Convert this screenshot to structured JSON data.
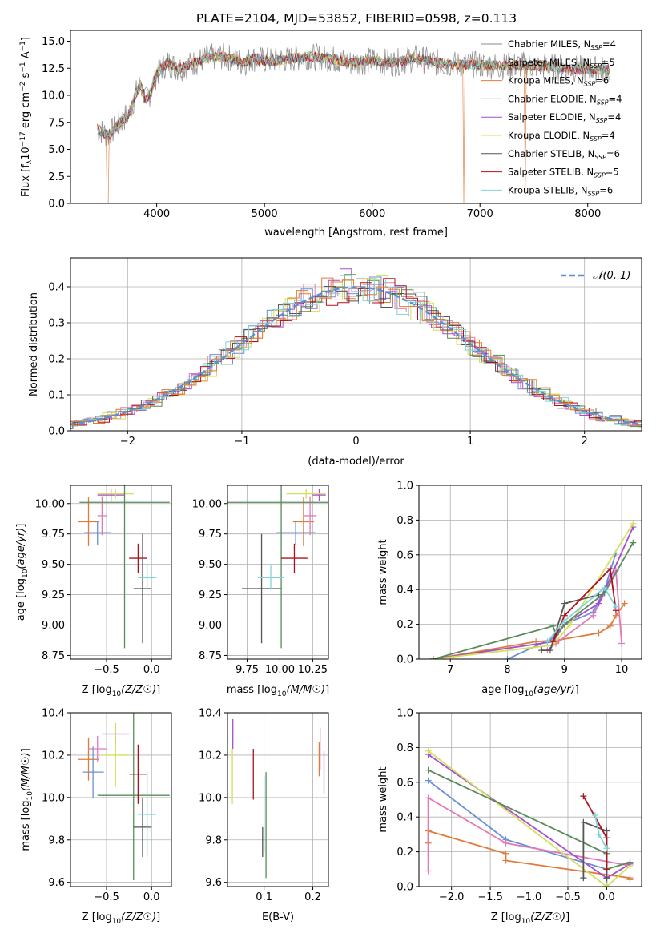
{
  "figure_title": "PLATE=2104, MJD=53852, FIBERID=0598, z=0.113",
  "colors": {
    "Chabrier MILES": "#6a8fd8",
    "Salpeter MILES": "#e07b39",
    "Kroupa MILES": "#e07b39",
    "Chabrier ELODIE": "#5a8a5a",
    "Salpeter ELODIE": "#a64dcc",
    "Kroupa ELODIE": "#d4e05a",
    "Chabrier STELIB": "#555555",
    "Salpeter STELIB": "#b0101a",
    "Kroupa STELIB": "#7fd4d8",
    "pink": "#e37ab8",
    "normal": "#5a8fd8"
  },
  "chart_data": [
    {
      "id": "spectrum",
      "type": "line",
      "xlabel": "wavelength [Angstrom, rest frame]",
      "ylabel": "Flux [f_λ 10^-17 erg cm^-2 s^-1 A^-1]",
      "ylabel_parts": {
        "main": "Flux [f",
        "sub": "λ",
        "mid": "10",
        "sup1": "−17",
        "rest": " erg cm",
        "sup2": "−2",
        "s": " s",
        "sup3": "−1",
        "a": " A",
        "sup4": "−1",
        "end": "]"
      },
      "xlim": [
        3200,
        8500
      ],
      "ylim": [
        0,
        16
      ],
      "xticks": [
        "4000",
        "5000",
        "6000",
        "7000",
        "8000"
      ],
      "yticks": [
        "0.0",
        "2.5",
        "5.0",
        "7.5",
        "10.0",
        "12.5",
        "15.0"
      ],
      "legend": [
        {
          "model": "Chabrier MILES",
          "n": "4",
          "color": "#888888"
        },
        {
          "model": "Salpeter MILES",
          "n": "5",
          "color": "#e07b39"
        },
        {
          "model": "Kroupa MILES",
          "n": "6",
          "color": "#e07b39"
        },
        {
          "model": "Chabrier ELODIE",
          "n": "4",
          "color": "#5a8a5a"
        },
        {
          "model": "Salpeter ELODIE",
          "n": "4",
          "color": "#a64dcc"
        },
        {
          "model": "Kroupa ELODIE",
          "n": "4",
          "color": "#d4e05a"
        },
        {
          "model": "Chabrier STELIB",
          "n": "6",
          "color": "#555555"
        },
        {
          "model": "Salpeter STELIB",
          "n": "5",
          "color": "#b0101a"
        },
        {
          "model": "Kroupa STELIB",
          "n": "6",
          "color": "#7fd4d8"
        }
      ],
      "nssp_label": "N",
      "nssp_sub": "SSP",
      "series_x": [
        3450,
        3500,
        3550,
        3600,
        3650,
        3700,
        3750,
        3800,
        3850,
        3900,
        3950,
        4000,
        4100,
        4200,
        4300,
        4400,
        4500,
        4600,
        4700,
        4800,
        4900,
        5000,
        5200,
        5400,
        5600,
        5800,
        6000,
        6200,
        6400,
        6600,
        6800,
        7000,
        7200,
        7400,
        7600,
        7800,
        8000,
        8200
      ],
      "series_y": [
        6.9,
        6.6,
        6.3,
        6.8,
        7.4,
        7.9,
        8.4,
        10.0,
        11.0,
        9.5,
        10.5,
        12.0,
        13.0,
        12.5,
        12.8,
        13.2,
        13.5,
        13.6,
        13.4,
        13.0,
        13.4,
        13.2,
        13.3,
        13.6,
        13.4,
        13.0,
        13.2,
        13.0,
        13.4,
        13.0,
        12.8,
        12.8,
        12.7,
        12.8,
        12.7,
        12.5,
        12.4,
        12.4
      ]
    },
    {
      "id": "residual-hist",
      "type": "line",
      "xlabel": "(data-model)/error",
      "ylabel": "Normed distribution",
      "xlim": [
        -2.5,
        2.5
      ],
      "ylim": [
        0,
        0.48
      ],
      "xticks": [
        "−2",
        "−1",
        "0",
        "1",
        "2"
      ],
      "yticks": [
        "0.0",
        "0.1",
        "0.2",
        "0.3",
        "0.4"
      ],
      "legend": "𝒩(0, 1)",
      "normal_curve": {
        "mean": 0,
        "sigma": 1
      }
    },
    {
      "id": "age-vs-z",
      "type": "scatter",
      "xlabel": "Z [log10(Z/Z☉)]",
      "ylabel": "age [log10(age/yr)]",
      "xlim": [
        -0.9,
        0.22
      ],
      "ylim": [
        8.72,
        10.15
      ],
      "xticks": [
        "−0.5",
        "0.0"
      ],
      "yticks": [
        "8.75",
        "9.00",
        "9.25",
        "9.50",
        "9.75",
        "10.00"
      ],
      "points": [
        {
          "x": -0.7,
          "y": 9.85,
          "xe": 0.12,
          "ye": 0.2,
          "c": "#e07b39"
        },
        {
          "x": -0.6,
          "y": 9.76,
          "xe": 0.15,
          "ye": 0.1,
          "c": "#6a8fd8"
        },
        {
          "x": -0.55,
          "y": 9.9,
          "xe": 0.05,
          "ye": 0.16,
          "c": "#e37ab8"
        },
        {
          "x": -0.45,
          "y": 10.07,
          "xe": 0.15,
          "ye": 0.05,
          "c": "#a64dcc"
        },
        {
          "x": -0.4,
          "y": 10.08,
          "xe": 0.2,
          "ye": 0.04,
          "c": "#d4e05a"
        },
        {
          "x": -0.3,
          "y": 10.01,
          "xe": 0.5,
          "ye": 1.2,
          "c": "#5a8a5a"
        },
        {
          "x": -0.15,
          "y": 9.55,
          "xe": 0.1,
          "ye": 0.12,
          "c": "#b0101a"
        },
        {
          "x": -0.1,
          "y": 9.3,
          "xe": 0.1,
          "ye": 0.45,
          "c": "#555555"
        },
        {
          "x": -0.05,
          "y": 9.39,
          "xe": 0.1,
          "ye": 0.1,
          "c": "#7fd4d8"
        }
      ]
    },
    {
      "id": "age-vs-mass",
      "type": "scatter",
      "xlabel": "mass [log10(M/M☉)]",
      "ylabel": "",
      "xlim": [
        9.6,
        10.37
      ],
      "ylim": [
        8.72,
        10.15
      ],
      "xticks": [
        "9.75",
        "10.00",
        "10.25"
      ],
      "yticks": [
        "8.75",
        "9.00",
        "9.25",
        "9.50",
        "9.75",
        "10.00"
      ],
      "points": [
        {
          "x": 10.18,
          "y": 9.85,
          "xe": 0.08,
          "ye": 0.2,
          "c": "#e07b39"
        },
        {
          "x": 10.12,
          "y": 9.76,
          "xe": 0.15,
          "ye": 0.1,
          "c": "#6a8fd8"
        },
        {
          "x": 10.23,
          "y": 9.9,
          "xe": 0.05,
          "ye": 0.16,
          "c": "#e37ab8"
        },
        {
          "x": 10.3,
          "y": 10.07,
          "xe": 0.05,
          "ye": 0.05,
          "c": "#a64dcc"
        },
        {
          "x": 10.2,
          "y": 10.08,
          "xe": 0.15,
          "ye": 0.04,
          "c": "#d4e05a"
        },
        {
          "x": 10.01,
          "y": 10.01,
          "xe": 0.42,
          "ye": 1.2,
          "c": "#5a8a5a"
        },
        {
          "x": 10.11,
          "y": 9.55,
          "xe": 0.1,
          "ye": 0.12,
          "c": "#b0101a"
        },
        {
          "x": 9.86,
          "y": 9.3,
          "xe": 0.15,
          "ye": 0.45,
          "c": "#555555"
        },
        {
          "x": 9.93,
          "y": 9.39,
          "xe": 0.1,
          "ye": 0.1,
          "c": "#7fd4d8"
        }
      ]
    },
    {
      "id": "mass-weight-vs-age",
      "type": "line",
      "xlabel": "age [log10(age/yr)]",
      "ylabel": "mass weight",
      "xlim": [
        6.45,
        10.35
      ],
      "ylim": [
        0,
        1.0
      ],
      "xticks": [
        "7",
        "8",
        "9",
        "10"
      ],
      "yticks": [
        "0.0",
        "0.2",
        "0.4",
        "0.6",
        "0.8",
        "1.0"
      ],
      "series": [
        {
          "c": "#e07b39",
          "x": [
            6.7,
            8.5,
            8.9,
            9.6,
            9.8,
            9.9,
            10.05
          ],
          "y": [
            0.0,
            0.1,
            0.11,
            0.15,
            0.19,
            0.25,
            0.32
          ]
        },
        {
          "c": "#6a8fd8",
          "x": [
            8.0,
            8.8,
            9.0,
            9.5,
            9.7,
            9.9
          ],
          "y": [
            0.0,
            0.12,
            0.2,
            0.27,
            0.4,
            0.61
          ]
        },
        {
          "c": "#e37ab8",
          "x": [
            8.7,
            8.85,
            9.5,
            9.9,
            10.0
          ],
          "y": [
            0.05,
            0.09,
            0.25,
            0.51,
            0.09
          ]
        },
        {
          "c": "#a64dcc",
          "x": [
            6.7,
            8.8,
            9.0,
            9.6,
            10.2
          ],
          "y": [
            0.0,
            0.1,
            0.2,
            0.32,
            0.76
          ]
        },
        {
          "c": "#d4e05a",
          "x": [
            6.7,
            8.8,
            9.1,
            10.2
          ],
          "y": [
            0.0,
            0.08,
            0.2,
            0.78
          ]
        },
        {
          "c": "#5a8a5a",
          "x": [
            6.7,
            8.8,
            8.85,
            9.0,
            9.7,
            10.2
          ],
          "y": [
            0.0,
            0.19,
            0.14,
            0.2,
            0.38,
            0.67
          ]
        },
        {
          "c": "#555555",
          "x": [
            8.6,
            8.75,
            9.0,
            9.6
          ],
          "y": [
            0.05,
            0.05,
            0.32,
            0.37
          ]
        },
        {
          "c": "#b0101a",
          "x": [
            8.8,
            9.0,
            9.8,
            9.9
          ],
          "y": [
            0.1,
            0.25,
            0.52,
            0.28
          ]
        },
        {
          "c": "#7fd4d8",
          "x": [
            8.7,
            9.0,
            9.7,
            9.9
          ],
          "y": [
            0.1,
            0.22,
            0.41,
            0.3
          ]
        }
      ]
    },
    {
      "id": "mass-vs-z",
      "type": "scatter",
      "xlabel": "Z [log10(Z/Z☉)]",
      "ylabel": "mass [log10(M/M☉)]",
      "xlim": [
        -0.9,
        0.22
      ],
      "ylim": [
        9.58,
        10.4
      ],
      "xticks": [
        "−0.5",
        "0.0"
      ],
      "yticks": [
        "9.6",
        "9.8",
        "10.0",
        "10.2",
        "10.4"
      ],
      "points": [
        {
          "x": -0.7,
          "y": 10.18,
          "xe": 0.12,
          "ye": 0.1,
          "c": "#e07b39"
        },
        {
          "x": -0.65,
          "y": 10.12,
          "xe": 0.12,
          "ye": 0.12,
          "c": "#6a8fd8"
        },
        {
          "x": -0.6,
          "y": 10.23,
          "xe": 0.1,
          "ye": 0.06,
          "c": "#e37ab8"
        },
        {
          "x": -0.4,
          "y": 10.3,
          "xe": 0.15,
          "ye": 0.05,
          "c": "#a64dcc"
        },
        {
          "x": -0.4,
          "y": 10.2,
          "xe": 0.15,
          "ye": 0.15,
          "c": "#d4e05a"
        },
        {
          "x": -0.2,
          "y": 10.01,
          "xe": 0.4,
          "ye": 0.4,
          "c": "#5a8a5a"
        },
        {
          "x": -0.15,
          "y": 10.11,
          "xe": 0.1,
          "ye": 0.14,
          "c": "#b0101a"
        },
        {
          "x": -0.1,
          "y": 9.86,
          "xe": 0.1,
          "ye": 0.14,
          "c": "#555555"
        },
        {
          "x": -0.05,
          "y": 9.92,
          "xe": 0.1,
          "ye": 0.2,
          "c": "#7fd4d8"
        }
      ]
    },
    {
      "id": "mass-vs-ebv",
      "type": "scatter",
      "xlabel": "E(B-V)",
      "ylabel": "",
      "xlim": [
        0.025,
        0.232
      ],
      "ylim": [
        9.58,
        10.4
      ],
      "xticks": [
        "0.1",
        "0.2"
      ],
      "yticks": [
        "9.6",
        "9.8",
        "10.0",
        "10.2",
        "10.4"
      ],
      "points": [
        {
          "x": 0.213,
          "y": 10.18,
          "xe": 0,
          "ye": 0.08,
          "c": "#e07b39"
        },
        {
          "x": 0.223,
          "y": 10.12,
          "xe": 0,
          "ye": 0.1,
          "c": "#6a8fd8"
        },
        {
          "x": 0.215,
          "y": 10.23,
          "xe": 0,
          "ye": 0.1,
          "c": "#e37ab8"
        },
        {
          "x": 0.036,
          "y": 10.3,
          "xe": 0,
          "ye": 0.07,
          "c": "#a64dcc"
        },
        {
          "x": 0.035,
          "y": 10.1,
          "xe": 0,
          "ye": 0.13,
          "c": "#d4e05a"
        },
        {
          "x": 0.104,
          "y": 9.87,
          "xe": 0,
          "ye": 0.25,
          "c": "#5a8a5a"
        },
        {
          "x": 0.078,
          "y": 10.11,
          "xe": 0,
          "ye": 0.12,
          "c": "#b0101a"
        },
        {
          "x": 0.097,
          "y": 9.79,
          "xe": 0,
          "ye": 0.07,
          "c": "#555555"
        },
        {
          "x": 0.1,
          "y": 9.92,
          "xe": 0,
          "ye": 0.18,
          "c": "#7fd4d8"
        }
      ]
    },
    {
      "id": "mass-weight-vs-z",
      "type": "line",
      "xlabel": "Z [log10(Z/Z☉)]",
      "ylabel": "mass weight",
      "xlim": [
        -2.42,
        0.45
      ],
      "ylim": [
        0,
        1.0
      ],
      "xticks": [
        "−2.0",
        "−1.5",
        "−1.0",
        "−0.5",
        "0.0"
      ],
      "yticks": [
        "0.0",
        "0.2",
        "0.4",
        "0.6",
        "0.8",
        "1.0"
      ],
      "series": [
        {
          "c": "#e07b39",
          "x": [
            -2.3,
            -2.3,
            -1.3,
            -1.3,
            0.3,
            0.3
          ],
          "y": [
            0.25,
            0.32,
            0.19,
            0.15,
            0.05,
            0.04
          ]
        },
        {
          "c": "#6a8fd8",
          "x": [
            -2.3,
            -1.3,
            0.0,
            0.0
          ],
          "y": [
            0.61,
            0.27,
            0.1,
            0.0
          ]
        },
        {
          "c": "#e37ab8",
          "x": [
            -2.3,
            -2.3,
            -1.3,
            0.3,
            0.3
          ],
          "y": [
            0.09,
            0.51,
            0.25,
            0.12,
            0.13
          ]
        },
        {
          "c": "#a64dcc",
          "x": [
            -2.3,
            0.0,
            0.3
          ],
          "y": [
            0.76,
            0.05,
            0.13
          ]
        },
        {
          "c": "#d4e05a",
          "x": [
            -2.3,
            0.0,
            0.3
          ],
          "y": [
            0.78,
            0.0,
            0.12
          ]
        },
        {
          "c": "#5a8a5a",
          "x": [
            -2.3,
            0.0,
            0.0,
            0.3
          ],
          "y": [
            0.67,
            0.19,
            0.1,
            0.14
          ]
        },
        {
          "c": "#555555",
          "x": [
            -0.3,
            -0.3,
            0.0,
            0.0
          ],
          "y": [
            0.05,
            0.37,
            0.32,
            0.05
          ]
        },
        {
          "c": "#b0101a",
          "x": [
            -0.3,
            0.0,
            0.0
          ],
          "y": [
            0.52,
            0.28,
            0.1
          ]
        },
        {
          "c": "#7fd4d8",
          "x": [
            -0.15,
            -0.1,
            0.0
          ],
          "y": [
            0.41,
            0.3,
            0.22
          ]
        }
      ]
    }
  ]
}
